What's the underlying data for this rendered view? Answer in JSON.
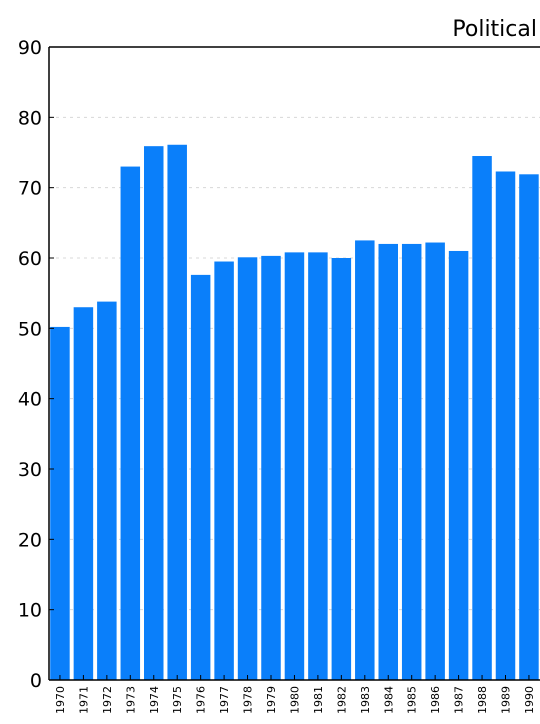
{
  "chart_data": {
    "type": "bar",
    "title": "Political",
    "xlabel": "",
    "ylabel": "",
    "ylim": [
      0,
      90
    ],
    "yticks": [
      0,
      10,
      20,
      30,
      40,
      50,
      60,
      70,
      80,
      90
    ],
    "grid": true,
    "bar_color": "#0a7ffa",
    "categories": [
      "1970",
      "1971",
      "1972",
      "1973",
      "1974",
      "1975",
      "1976",
      "1977",
      "1978",
      "1979",
      "1980",
      "1981",
      "1982",
      "1983",
      "1984",
      "1985",
      "1986",
      "1987",
      "1988",
      "1989",
      "1990"
    ],
    "values": [
      50.2,
      53.0,
      53.8,
      73.0,
      75.9,
      76.1,
      57.6,
      59.5,
      60.1,
      60.3,
      60.8,
      60.8,
      60.0,
      62.5,
      62.0,
      62.0,
      62.2,
      61.0,
      74.5,
      72.3,
      71.9
    ]
  }
}
